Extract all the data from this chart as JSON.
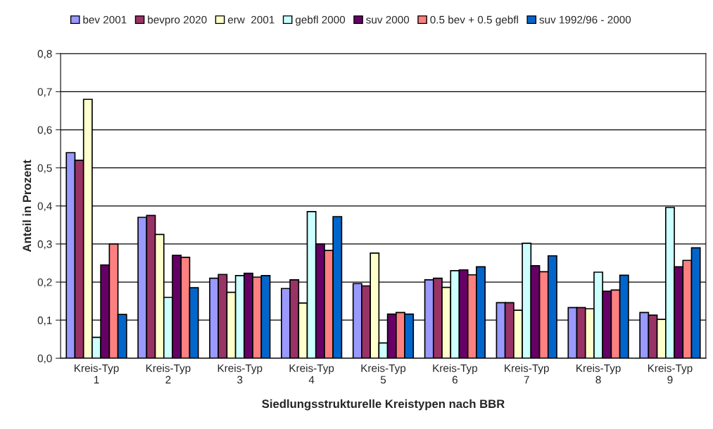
{
  "chart_data": {
    "type": "bar",
    "xlabel": "Siedlungsstrukturelle Kreistypen nach BBR",
    "ylabel": "Anteil in Prozent",
    "categories": [
      "Kreis-Typ\n1",
      "Kreis-Typ\n2",
      "Kreis-Typ\n3",
      "Kreis-Typ\n4",
      "Kreis-Typ\n5",
      "Kreis-Typ\n6",
      "Kreis-Typ\n7",
      "Kreis-Typ\n8",
      "Kreis-Typ\n9"
    ],
    "series": [
      {
        "name": "bev 2001",
        "color": "#9999ff",
        "values": [
          0.54,
          0.37,
          0.21,
          0.183,
          0.196,
          0.206,
          0.146,
          0.133,
          0.12
        ]
      },
      {
        "name": "bevpro 2020",
        "color": "#993366",
        "values": [
          0.52,
          0.375,
          0.22,
          0.206,
          0.19,
          0.21,
          0.146,
          0.133,
          0.113
        ]
      },
      {
        "name": "erw  2001",
        "color": "#ffffcc",
        "values": [
          0.68,
          0.325,
          0.173,
          0.145,
          0.276,
          0.186,
          0.126,
          0.13,
          0.102
        ]
      },
      {
        "name": "gebfl 2000",
        "color": "#ccffff",
        "values": [
          0.055,
          0.16,
          0.217,
          0.385,
          0.04,
          0.23,
          0.302,
          0.226,
          0.396
        ]
      },
      {
        "name": "suv 2000",
        "color": "#660066",
        "values": [
          0.245,
          0.27,
          0.223,
          0.3,
          0.116,
          0.232,
          0.243,
          0.176,
          0.24
        ]
      },
      {
        "name": "0.5 bev + 0.5 gebfl",
        "color": "#ff8080",
        "values": [
          0.3,
          0.265,
          0.213,
          0.283,
          0.12,
          0.219,
          0.227,
          0.179,
          0.257
        ]
      },
      {
        "name": "suv 1992/96 - 2000",
        "color": "#0066cc",
        "values": [
          0.115,
          0.185,
          0.217,
          0.372,
          0.116,
          0.24,
          0.269,
          0.218,
          0.29
        ]
      }
    ],
    "ylim": [
      0,
      0.8
    ],
    "yticks": [
      {
        "value": 0,
        "label": "0,0"
      },
      {
        "value": 0.1,
        "label": "0,1"
      },
      {
        "value": 0.2,
        "label": "0,2"
      },
      {
        "value": 0.3,
        "label": "0,3"
      },
      {
        "value": 0.4,
        "label": "0,4"
      },
      {
        "value": 0.5,
        "label": "0,5"
      },
      {
        "value": 0.6,
        "label": "0,6"
      },
      {
        "value": 0.7,
        "label": "0,7"
      },
      {
        "value": 0.8,
        "label": "0,8"
      }
    ],
    "grid": "y",
    "legend": "top"
  }
}
